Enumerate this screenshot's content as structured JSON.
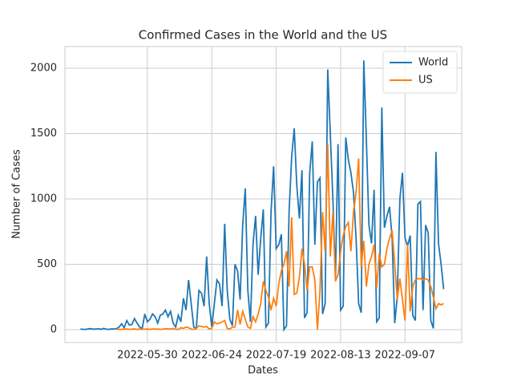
{
  "chart_data": {
    "type": "line",
    "title": "Confirmed Cases in the World and the US",
    "xlabel": "Dates",
    "ylabel": "Number of Cases",
    "x": [
      "2022-05-04",
      "2022-05-05",
      "2022-05-06",
      "2022-05-07",
      "2022-05-08",
      "2022-05-09",
      "2022-05-10",
      "2022-05-11",
      "2022-05-12",
      "2022-05-13",
      "2022-05-14",
      "2022-05-15",
      "2022-05-16",
      "2022-05-17",
      "2022-05-18",
      "2022-05-19",
      "2022-05-20",
      "2022-05-21",
      "2022-05-22",
      "2022-05-23",
      "2022-05-24",
      "2022-05-25",
      "2022-05-26",
      "2022-05-27",
      "2022-05-28",
      "2022-05-29",
      "2022-05-30",
      "2022-05-31",
      "2022-06-01",
      "2022-06-02",
      "2022-06-03",
      "2022-06-04",
      "2022-06-05",
      "2022-06-06",
      "2022-06-07",
      "2022-06-08",
      "2022-06-09",
      "2022-06-10",
      "2022-06-11",
      "2022-06-12",
      "2022-06-13",
      "2022-06-14",
      "2022-06-15",
      "2022-06-16",
      "2022-06-17",
      "2022-06-18",
      "2022-06-19",
      "2022-06-20",
      "2022-06-21",
      "2022-06-22",
      "2022-06-23",
      "2022-06-24",
      "2022-06-25",
      "2022-06-26",
      "2022-06-27",
      "2022-06-28",
      "2022-06-29",
      "2022-06-30",
      "2022-07-01",
      "2022-07-02",
      "2022-07-03",
      "2022-07-04",
      "2022-07-05",
      "2022-07-06",
      "2022-07-07",
      "2022-07-08",
      "2022-07-09",
      "2022-07-10",
      "2022-07-11",
      "2022-07-12",
      "2022-07-13",
      "2022-07-14",
      "2022-07-15",
      "2022-07-16",
      "2022-07-17",
      "2022-07-18",
      "2022-07-19",
      "2022-07-20",
      "2022-07-21",
      "2022-07-22",
      "2022-07-23",
      "2022-07-24",
      "2022-07-25",
      "2022-07-26",
      "2022-07-27",
      "2022-07-28",
      "2022-07-29",
      "2022-07-30",
      "2022-07-31",
      "2022-08-01",
      "2022-08-02",
      "2022-08-03",
      "2022-08-04",
      "2022-08-05",
      "2022-08-06",
      "2022-08-07",
      "2022-08-08",
      "2022-08-09",
      "2022-08-10",
      "2022-08-11",
      "2022-08-12",
      "2022-08-13",
      "2022-08-14",
      "2022-08-15",
      "2022-08-16",
      "2022-08-17",
      "2022-08-18",
      "2022-08-19",
      "2022-08-20",
      "2022-08-21",
      "2022-08-22",
      "2022-08-23",
      "2022-08-24",
      "2022-08-25",
      "2022-08-26",
      "2022-08-27",
      "2022-08-28",
      "2022-08-29",
      "2022-08-30",
      "2022-08-31",
      "2022-09-01",
      "2022-09-02",
      "2022-09-03",
      "2022-09-04",
      "2022-09-05",
      "2022-09-06",
      "2022-09-07",
      "2022-09-08",
      "2022-09-09",
      "2022-09-10",
      "2022-09-11",
      "2022-09-12",
      "2022-09-13",
      "2022-09-14",
      "2022-09-15",
      "2022-09-16",
      "2022-09-17",
      "2022-09-18",
      "2022-09-19",
      "2022-09-20",
      "2022-09-21",
      "2022-09-22"
    ],
    "series": [
      {
        "name": "World",
        "color": "#1f77b4",
        "values": [
          5,
          3,
          2,
          6,
          8,
          4,
          5,
          7,
          3,
          10,
          4,
          2,
          6,
          5,
          8,
          20,
          45,
          15,
          70,
          35,
          40,
          85,
          50,
          20,
          10,
          120,
          60,
          80,
          120,
          100,
          50,
          110,
          120,
          150,
          100,
          140,
          50,
          20,
          110,
          60,
          240,
          150,
          380,
          200,
          20,
          10,
          300,
          280,
          180,
          560,
          200,
          20,
          200,
          380,
          350,
          180,
          810,
          300,
          80,
          30,
          500,
          450,
          230,
          800,
          1080,
          300,
          60,
          650,
          870,
          420,
          700,
          920,
          20,
          50,
          900,
          1250,
          620,
          650,
          730,
          0,
          30,
          900,
          1320,
          1540,
          1100,
          850,
          1220,
          90,
          130,
          1200,
          1440,
          650,
          1130,
          1160,
          120,
          200,
          1990,
          1500,
          1000,
          400,
          1420,
          150,
          180,
          1470,
          1300,
          1200,
          1050,
          700,
          200,
          130,
          2060,
          1450,
          800,
          660,
          1070,
          60,
          90,
          1700,
          780,
          870,
          940,
          700,
          50,
          250,
          1000,
          1200,
          700,
          640,
          720,
          110,
          70,
          960,
          980,
          150,
          800,
          740,
          70,
          10,
          1360,
          660,
          500,
          310
        ]
      },
      {
        "name": "US",
        "color": "#ff7f0e",
        "values": [
          null,
          null,
          null,
          null,
          null,
          null,
          null,
          null,
          null,
          null,
          null,
          null,
          null,
          null,
          5,
          3,
          2,
          4,
          5,
          3,
          4,
          6,
          2,
          5,
          3,
          4,
          5,
          2,
          6,
          4,
          5,
          3,
          4,
          8,
          6,
          5,
          10,
          3,
          2,
          15,
          10,
          20,
          15,
          5,
          2,
          10,
          30,
          25,
          20,
          25,
          5,
          10,
          60,
          45,
          50,
          60,
          70,
          10,
          5,
          20,
          20,
          150,
          40,
          140,
          80,
          20,
          10,
          100,
          60,
          120,
          200,
          370,
          300,
          250,
          150,
          240,
          180,
          350,
          450,
          500,
          600,
          330,
          860,
          270,
          280,
          400,
          620,
          500,
          300,
          480,
          480,
          380,
          0,
          300,
          900,
          600,
          1420,
          560,
          900,
          370,
          420,
          600,
          720,
          790,
          820,
          600,
          900,
          1050,
          1310,
          480,
          680,
          330,
          500,
          560,
          650,
          320,
          580,
          480,
          500,
          620,
          700,
          760,
          500,
          230,
          390,
          230,
          70,
          650,
          140,
          330,
          380,
          390,
          390,
          380,
          390,
          380,
          330,
          250,
          160,
          200,
          190,
          200
        ]
      }
    ],
    "xlim": [
      "2022-04-28",
      "2022-09-29"
    ],
    "xticks": [
      "2022-05-30",
      "2022-06-24",
      "2022-07-19",
      "2022-08-13",
      "2022-09-07"
    ],
    "ylim": [
      -98,
      2166
    ],
    "yticks": [
      0,
      500,
      1000,
      1500,
      2000
    ],
    "grid": true,
    "legend": "upper right"
  }
}
